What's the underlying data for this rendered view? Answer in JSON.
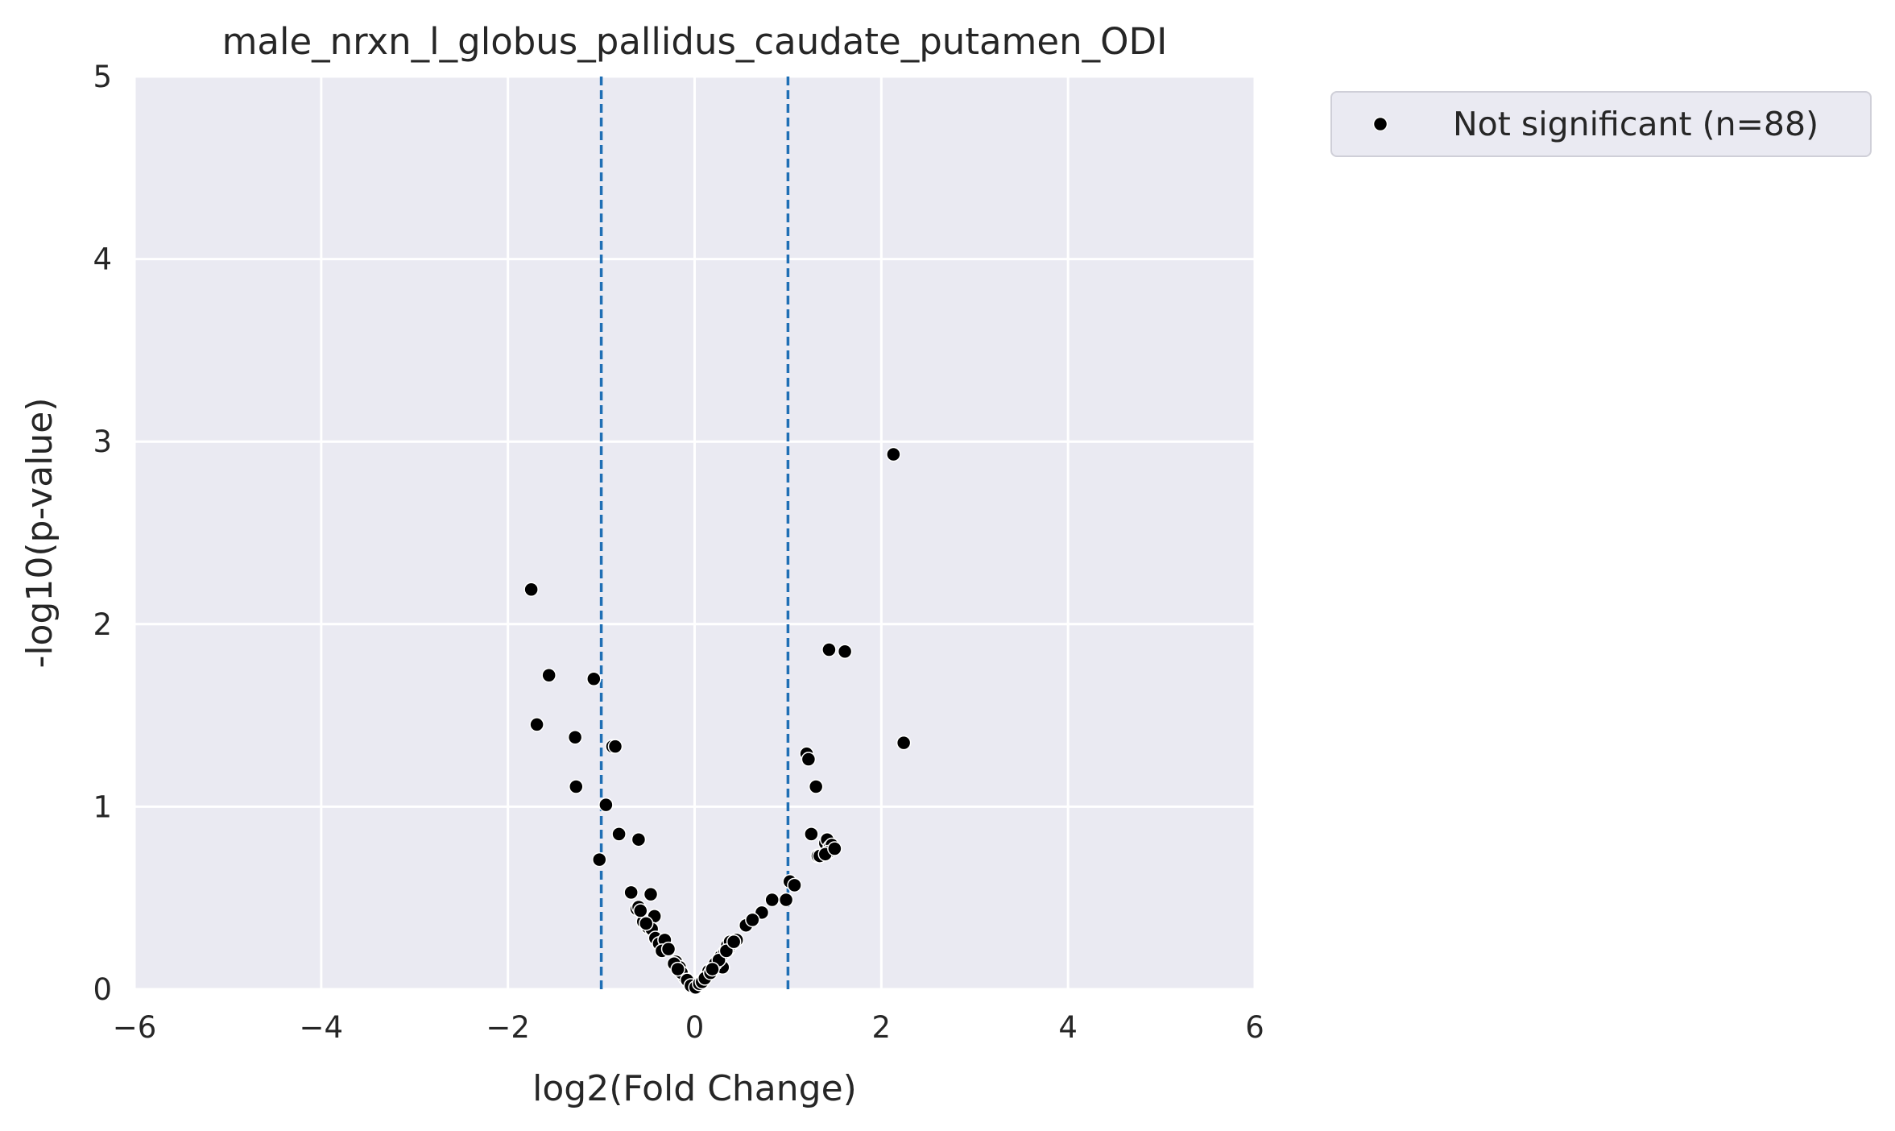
{
  "chart_data": {
    "type": "scatter",
    "title": "male_nrxn_l_globus_pallidus_caudate_putamen_ODI",
    "xlabel": "log2(Fold Change)",
    "ylabel": "-log10(p-value)",
    "xlim": [
      -6,
      6
    ],
    "ylim": [
      0,
      5
    ],
    "xticks": [
      -6,
      -4,
      -2,
      0,
      2,
      4,
      6
    ],
    "xtick_labels": [
      "−6",
      "−4",
      "−2",
      "0",
      "2",
      "4",
      "6"
    ],
    "yticks": [
      0,
      1,
      2,
      3,
      4,
      5
    ],
    "ytick_labels": [
      "0",
      "1",
      "2",
      "3",
      "4",
      "5"
    ],
    "grid": true,
    "background_color": "#eaeaf2",
    "threshold_lines": {
      "x": [
        -1,
        1
      ],
      "color": "#1f6fb5",
      "style": "dashed"
    },
    "legend": {
      "placement": "outside-top-right",
      "entries": [
        "Not significant (n=88)"
      ]
    },
    "series": [
      {
        "name": "Not significant (n=88)",
        "color": "#000000",
        "points": [
          [
            -1.75,
            2.19
          ],
          [
            -1.56,
            1.72
          ],
          [
            -1.69,
            1.45
          ],
          [
            -1.28,
            1.38
          ],
          [
            -1.27,
            1.11
          ],
          [
            -1.08,
            1.7
          ],
          [
            -0.88,
            1.33
          ],
          [
            -0.85,
            1.33
          ],
          [
            -0.95,
            1.01
          ],
          [
            -1.02,
            0.71
          ],
          [
            -0.81,
            0.85
          ],
          [
            -0.6,
            0.82
          ],
          [
            -0.68,
            0.53
          ],
          [
            -0.62,
            0.44
          ],
          [
            -0.6,
            0.45
          ],
          [
            -0.47,
            0.52
          ],
          [
            -0.43,
            0.4
          ],
          [
            -0.5,
            0.34
          ],
          [
            -0.46,
            0.33
          ],
          [
            -0.42,
            0.28
          ],
          [
            -0.38,
            0.25
          ],
          [
            -0.32,
            0.27
          ],
          [
            -0.35,
            0.21
          ],
          [
            -0.2,
            0.15
          ],
          [
            -0.16,
            0.12
          ],
          [
            -0.12,
            0.08
          ],
          [
            -0.1,
            0.06
          ],
          [
            -0.05,
            0.03
          ],
          [
            -0.02,
            0.02
          ],
          [
            0.0,
            0.01
          ],
          [
            0.03,
            0.02
          ],
          [
            0.06,
            0.04
          ],
          [
            0.09,
            0.05
          ],
          [
            0.12,
            0.07
          ],
          [
            0.15,
            0.1
          ],
          [
            0.2,
            0.12
          ],
          [
            0.24,
            0.15
          ],
          [
            0.28,
            0.18
          ],
          [
            0.32,
            0.2
          ],
          [
            0.36,
            0.22
          ],
          [
            0.4,
            0.25
          ],
          [
            0.45,
            0.27
          ],
          [
            0.3,
            0.12
          ],
          [
            0.35,
            0.24
          ],
          [
            0.38,
            0.26
          ],
          [
            0.55,
            0.35
          ],
          [
            0.72,
            0.42
          ],
          [
            0.83,
            0.49
          ],
          [
            0.98,
            0.49
          ],
          [
            1.02,
            0.59
          ],
          [
            1.07,
            0.57
          ],
          [
            1.2,
            1.29
          ],
          [
            1.22,
            1.26
          ],
          [
            1.3,
            1.11
          ],
          [
            1.25,
            0.85
          ],
          [
            1.32,
            0.73
          ],
          [
            1.34,
            0.73
          ],
          [
            1.4,
            0.8
          ],
          [
            1.42,
            0.82
          ],
          [
            1.45,
            0.78
          ],
          [
            1.47,
            0.79
          ],
          [
            1.43,
            0.75
          ],
          [
            1.4,
            0.74
          ],
          [
            1.44,
            1.86
          ],
          [
            1.61,
            1.85
          ],
          [
            2.13,
            2.93
          ],
          [
            2.24,
            1.35
          ],
          [
            -0.28,
            0.22
          ],
          [
            -0.22,
            0.14
          ],
          [
            -0.14,
            0.09
          ],
          [
            -0.08,
            0.05
          ],
          [
            -0.04,
            0.02
          ],
          [
            0.01,
            0.01
          ],
          [
            0.05,
            0.03
          ],
          [
            0.08,
            0.04
          ],
          [
            0.11,
            0.06
          ],
          [
            0.17,
            0.09
          ],
          [
            0.22,
            0.14
          ],
          [
            0.26,
            0.16
          ],
          [
            0.34,
            0.21
          ],
          [
            0.42,
            0.26
          ],
          [
            -0.55,
            0.37
          ],
          [
            -0.52,
            0.36
          ],
          [
            0.62,
            0.38
          ],
          [
            -0.58,
            0.43
          ],
          [
            1.5,
            0.77
          ],
          [
            -0.18,
            0.11
          ],
          [
            0.19,
            0.11
          ]
        ]
      }
    ]
  }
}
